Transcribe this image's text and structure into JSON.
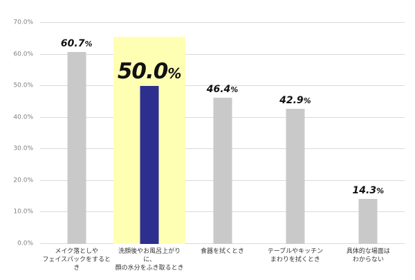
{
  "chart_data": {
    "type": "bar",
    "title": "",
    "xlabel": "",
    "ylabel": "",
    "ylim": [
      0,
      70
    ],
    "grid": true,
    "legend": false,
    "yticks": [
      "0.0%",
      "10.0%",
      "20.0%",
      "30.0%",
      "40.0%",
      "50.0%",
      "60.0%",
      "70.0%"
    ],
    "categories": [
      [
        "メイク落としや",
        "フェイスパックをするとき"
      ],
      [
        "洗顔後やお風呂上がりに、",
        "顔の水分をふき取るとき"
      ],
      [
        "食器を拭くとき"
      ],
      [
        "テーブルやキッチン",
        "まわりを拭くとき"
      ],
      [
        "具体的な場面は",
        "わからない"
      ]
    ],
    "values": [
      60.7,
      50.0,
      46.4,
      42.9,
      14.3
    ],
    "value_labels": [
      "60.7%",
      "50.0%",
      "46.4%",
      "42.9%",
      "14.3%"
    ],
    "highlight_index": 1,
    "bar_color": "#c9c9c9",
    "highlight_bar_color": "#2d2f8f",
    "highlight_band_color": "#ffffb3",
    "gridline_color": "#d9d9d9"
  }
}
